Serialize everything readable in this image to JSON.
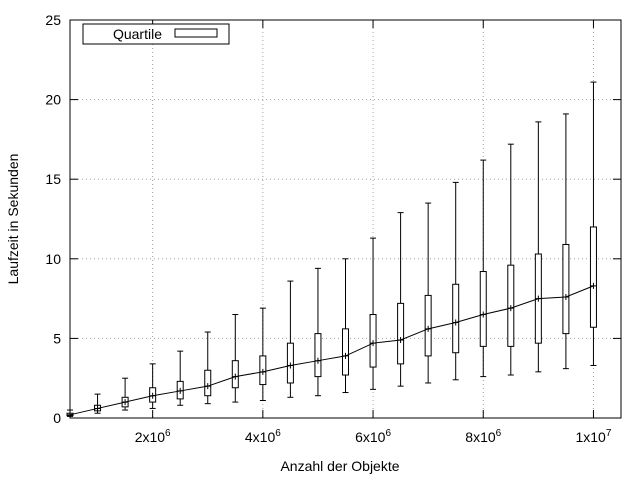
{
  "chart_data": {
    "type": "boxplot",
    "title": "",
    "xlabel": "Anzahl der Objekte",
    "ylabel": "Laufzeit in Sekunden",
    "xlim": [
      500000,
      10500000
    ],
    "ylim": [
      0,
      25
    ],
    "grid": true,
    "legend": {
      "position": "top-left",
      "entries": [
        "Quartile"
      ]
    },
    "x_ticks": [
      {
        "value": 2000000,
        "base": "2x10",
        "exp": "6"
      },
      {
        "value": 4000000,
        "base": "4x10",
        "exp": "6"
      },
      {
        "value": 6000000,
        "base": "6x10",
        "exp": "6"
      },
      {
        "value": 8000000,
        "base": "8x10",
        "exp": "6"
      },
      {
        "value": 10000000,
        "base": "1x10",
        "exp": "7"
      }
    ],
    "y_ticks": [
      0,
      5,
      10,
      15,
      20,
      25
    ],
    "series": [
      {
        "name": "Quartile",
        "points": [
          {
            "x": 500000,
            "min": 0.1,
            "q1": 0.15,
            "median": 0.2,
            "q3": 0.3,
            "max": 0.5
          },
          {
            "x": 1000000,
            "min": 0.3,
            "q1": 0.45,
            "median": 0.6,
            "q3": 0.8,
            "max": 1.5
          },
          {
            "x": 1500000,
            "min": 0.5,
            "q1": 0.7,
            "median": 1.0,
            "q3": 1.3,
            "max": 2.5
          },
          {
            "x": 2000000,
            "min": 0.6,
            "q1": 1.0,
            "median": 1.4,
            "q3": 1.9,
            "max": 3.4
          },
          {
            "x": 2500000,
            "min": 0.8,
            "q1": 1.2,
            "median": 1.7,
            "q3": 2.3,
            "max": 4.2
          },
          {
            "x": 3000000,
            "min": 0.9,
            "q1": 1.4,
            "median": 2.0,
            "q3": 3.0,
            "max": 5.4
          },
          {
            "x": 3500000,
            "min": 1.0,
            "q1": 1.9,
            "median": 2.6,
            "q3": 3.6,
            "max": 6.5
          },
          {
            "x": 4000000,
            "min": 1.1,
            "q1": 2.1,
            "median": 2.9,
            "q3": 3.9,
            "max": 6.9
          },
          {
            "x": 4500000,
            "min": 1.3,
            "q1": 2.2,
            "median": 3.3,
            "q3": 4.7,
            "max": 8.6
          },
          {
            "x": 5000000,
            "min": 1.4,
            "q1": 2.6,
            "median": 3.6,
            "q3": 5.3,
            "max": 9.4
          },
          {
            "x": 5500000,
            "min": 1.6,
            "q1": 2.7,
            "median": 3.9,
            "q3": 5.6,
            "max": 10.0
          },
          {
            "x": 6000000,
            "min": 1.8,
            "q1": 3.2,
            "median": 4.7,
            "q3": 6.5,
            "max": 11.3
          },
          {
            "x": 6500000,
            "min": 2.0,
            "q1": 3.4,
            "median": 4.9,
            "q3": 7.2,
            "max": 12.9
          },
          {
            "x": 7000000,
            "min": 2.2,
            "q1": 3.9,
            "median": 5.6,
            "q3": 7.7,
            "max": 13.5
          },
          {
            "x": 7500000,
            "min": 2.4,
            "q1": 4.1,
            "median": 6.0,
            "q3": 8.4,
            "max": 14.8
          },
          {
            "x": 8000000,
            "min": 2.6,
            "q1": 4.5,
            "median": 6.5,
            "q3": 9.2,
            "max": 16.2
          },
          {
            "x": 8500000,
            "min": 2.7,
            "q1": 4.5,
            "median": 6.9,
            "q3": 9.6,
            "max": 17.2
          },
          {
            "x": 9000000,
            "min": 2.9,
            "q1": 4.7,
            "median": 7.5,
            "q3": 10.3,
            "max": 18.6
          },
          {
            "x": 9500000,
            "min": 3.1,
            "q1": 5.3,
            "median": 7.6,
            "q3": 10.9,
            "max": 19.1
          },
          {
            "x": 10000000,
            "min": 3.3,
            "q1": 5.7,
            "median": 8.3,
            "q3": 12.0,
            "max": 21.1
          }
        ]
      }
    ]
  }
}
